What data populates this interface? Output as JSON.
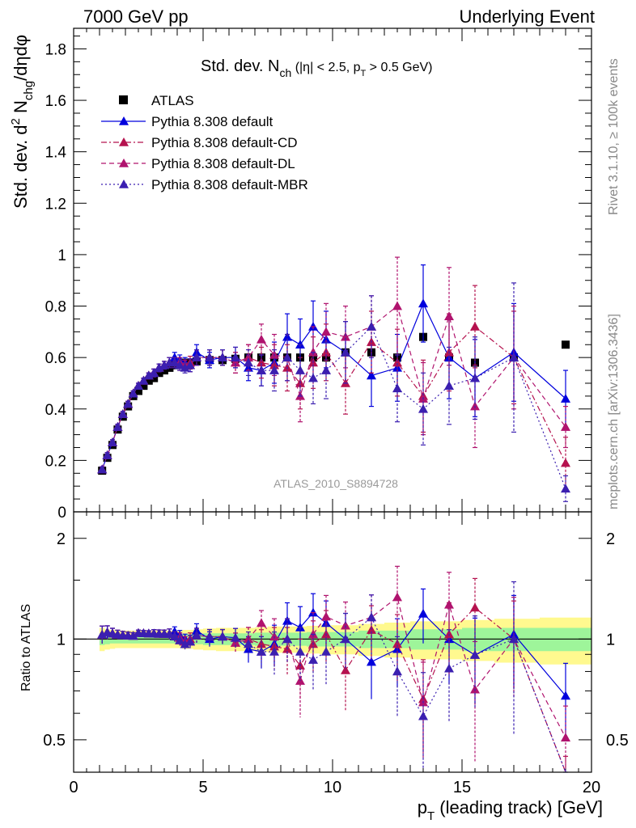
{
  "header": {
    "left": "7000 GeV pp",
    "right": "Underlying Event"
  },
  "side": {
    "rivet": "Rivet 3.1.10, ≥ 100k events",
    "mcplots": "mcplots.cern.ch [arXiv:1306.3436]"
  },
  "chart_data": {
    "type": "scatter",
    "title": {
      "main": "Std. dev. N",
      "main_sub": "ch",
      "cut_a": " (|η| < 2.5, p",
      "cut_sub": "T",
      "cut_b": " > 0.5 GeV)"
    },
    "watermark": "ATLAS_2010_S8894728",
    "ylabel": {
      "a": "Std. dev. d",
      "sup": "2",
      "b": " N",
      "sub": "chg",
      "c": "/dηdφ"
    },
    "ratio_ylabel": "Ratio to ATLAS",
    "xlabel": {
      "a": "p",
      "sub": "T",
      "b": " (leading track) [GeV]"
    },
    "xlim": [
      0,
      20
    ],
    "ylim": [
      0,
      1.88
    ],
    "ratio_ylim": [
      0.4,
      2.4
    ],
    "ratio_scale": "log",
    "x_ticks": [
      "0",
      "5",
      "10",
      "15",
      "20"
    ],
    "y_ticks": [
      "0",
      "0.2",
      "0.4",
      "0.6",
      "0.8",
      "1",
      "1.2",
      "1.4",
      "1.6",
      "1.8"
    ],
    "ratio_ticks": [
      "0.5",
      "1",
      "2"
    ],
    "colors": {
      "atlas": "#000000",
      "default": "#0000dd",
      "cd": "#b5124e",
      "dl": "#b0136e",
      "mbr": "#3b1fb0",
      "band_inner": "#9ef59a",
      "band_outer": "#fff98f"
    },
    "legend": [
      {
        "label": "ATLAS",
        "key": "atlas"
      },
      {
        "label": "Pythia 8.308 default",
        "key": "default"
      },
      {
        "label": "Pythia 8.308 default-CD",
        "key": "cd"
      },
      {
        "label": "Pythia 8.308 default-DL",
        "key": "dl"
      },
      {
        "label": "Pythia 8.308 default-MBR",
        "key": "mbr"
      }
    ],
    "x": [
      1.1,
      1.3,
      1.5,
      1.7,
      1.9,
      2.1,
      2.3,
      2.5,
      2.7,
      2.9,
      3.1,
      3.3,
      3.5,
      3.7,
      3.9,
      4.1,
      4.3,
      4.5,
      4.75,
      5.25,
      5.75,
      6.25,
      6.75,
      7.25,
      7.75,
      8.25,
      8.75,
      9.25,
      9.75,
      10.5,
      11.5,
      12.5,
      13.5,
      14.5,
      15.5,
      17.0,
      19.0
    ],
    "atlas": {
      "y": [
        0.16,
        0.21,
        0.26,
        0.32,
        0.37,
        0.41,
        0.45,
        0.47,
        0.49,
        0.51,
        0.52,
        0.54,
        0.55,
        0.56,
        0.57,
        0.575,
        0.58,
        0.58,
        0.585,
        0.59,
        0.59,
        0.595,
        0.6,
        0.6,
        0.6,
        0.6,
        0.6,
        0.6,
        0.6,
        0.62,
        0.62,
        0.6,
        0.68,
        0.6,
        0.58,
        0.6,
        0.65
      ],
      "band_inner": [
        0.04,
        0.035,
        0.03,
        0.03,
        0.03,
        0.03,
        0.03,
        0.03,
        0.03,
        0.03,
        0.03,
        0.03,
        0.03,
        0.03,
        0.03,
        0.03,
        0.035,
        0.035,
        0.035,
        0.04,
        0.04,
        0.04,
        0.04,
        0.045,
        0.045,
        0.045,
        0.045,
        0.05,
        0.05,
        0.05,
        0.06,
        0.06,
        0.07,
        0.07,
        0.08,
        0.08,
        0.08
      ],
      "band_outer": [
        0.08,
        0.07,
        0.065,
        0.06,
        0.06,
        0.06,
        0.06,
        0.06,
        0.06,
        0.06,
        0.06,
        0.06,
        0.06,
        0.06,
        0.06,
        0.06,
        0.065,
        0.065,
        0.07,
        0.075,
        0.08,
        0.08,
        0.08,
        0.085,
        0.09,
        0.09,
        0.09,
        0.095,
        0.1,
        0.1,
        0.11,
        0.12,
        0.13,
        0.13,
        0.14,
        0.15,
        0.16
      ]
    },
    "series": [
      {
        "key": "default",
        "name": "Pythia 8.308 default",
        "dash": "",
        "y": [
          0.165,
          0.22,
          0.27,
          0.33,
          0.38,
          0.42,
          0.46,
          0.49,
          0.51,
          0.53,
          0.54,
          0.56,
          0.57,
          0.58,
          0.6,
          0.59,
          0.58,
          0.57,
          0.62,
          0.59,
          0.6,
          0.6,
          0.56,
          0.55,
          0.58,
          0.68,
          0.65,
          0.72,
          0.67,
          0.62,
          0.53,
          0.56,
          0.81,
          0.6,
          0.52,
          0.62,
          0.44
        ],
        "err": [
          0.01,
          0.01,
          0.01,
          0.01,
          0.01,
          0.01,
          0.01,
          0.01,
          0.01,
          0.01,
          0.015,
          0.015,
          0.015,
          0.02,
          0.02,
          0.02,
          0.02,
          0.025,
          0.03,
          0.03,
          0.03,
          0.04,
          0.05,
          0.06,
          0.08,
          0.09,
          0.1,
          0.1,
          0.11,
          0.12,
          0.12,
          0.13,
          0.15,
          0.16,
          0.15,
          0.19,
          0.11
        ]
      },
      {
        "key": "cd",
        "name": "Pythia 8.308 default-CD",
        "dash": "7,3,2,3",
        "y": [
          0.165,
          0.22,
          0.27,
          0.33,
          0.38,
          0.42,
          0.46,
          0.49,
          0.51,
          0.53,
          0.54,
          0.56,
          0.57,
          0.58,
          0.58,
          0.57,
          0.57,
          0.58,
          0.6,
          0.6,
          0.6,
          0.58,
          0.6,
          0.58,
          0.57,
          0.56,
          0.5,
          0.58,
          0.62,
          0.5,
          0.66,
          0.58,
          0.45,
          0.62,
          0.72,
          0.6,
          0.19
        ],
        "err": [
          0.01,
          0.01,
          0.01,
          0.01,
          0.01,
          0.01,
          0.01,
          0.01,
          0.01,
          0.01,
          0.015,
          0.015,
          0.015,
          0.02,
          0.02,
          0.02,
          0.02,
          0.025,
          0.03,
          0.03,
          0.03,
          0.04,
          0.05,
          0.06,
          0.08,
          0.09,
          0.1,
          0.1,
          0.11,
          0.12,
          0.12,
          0.13,
          0.14,
          0.15,
          0.16,
          0.18,
          0.1
        ]
      },
      {
        "key": "dl",
        "name": "Pythia 8.308 default-DL",
        "dash": "6,4",
        "y": [
          0.165,
          0.22,
          0.27,
          0.33,
          0.38,
          0.42,
          0.46,
          0.49,
          0.51,
          0.53,
          0.54,
          0.56,
          0.57,
          0.58,
          0.58,
          0.58,
          0.57,
          0.57,
          0.6,
          0.6,
          0.6,
          0.58,
          0.6,
          0.67,
          0.61,
          0.6,
          0.45,
          0.62,
          0.7,
          0.68,
          0.72,
          0.8,
          0.44,
          0.76,
          0.41,
          0.6,
          0.33
        ],
        "err": [
          0.01,
          0.01,
          0.01,
          0.01,
          0.01,
          0.01,
          0.01,
          0.01,
          0.01,
          0.01,
          0.015,
          0.015,
          0.015,
          0.02,
          0.02,
          0.02,
          0.02,
          0.025,
          0.03,
          0.03,
          0.03,
          0.04,
          0.05,
          0.06,
          0.08,
          0.09,
          0.1,
          0.1,
          0.11,
          0.12,
          0.12,
          0.19,
          0.14,
          0.19,
          0.16,
          0.2,
          0.08
        ]
      },
      {
        "key": "mbr",
        "name": "Pythia 8.308 default-MBR",
        "dash": "2,3",
        "y": [
          0.165,
          0.22,
          0.27,
          0.33,
          0.38,
          0.42,
          0.46,
          0.49,
          0.51,
          0.53,
          0.54,
          0.56,
          0.57,
          0.58,
          0.58,
          0.57,
          0.56,
          0.57,
          0.6,
          0.6,
          0.6,
          0.6,
          0.58,
          0.55,
          0.55,
          0.6,
          0.55,
          0.52,
          0.55,
          0.62,
          0.72,
          0.48,
          0.4,
          0.49,
          0.52,
          0.6,
          0.09
        ],
        "err": [
          0.01,
          0.01,
          0.01,
          0.01,
          0.01,
          0.01,
          0.01,
          0.01,
          0.01,
          0.01,
          0.015,
          0.015,
          0.015,
          0.02,
          0.02,
          0.02,
          0.02,
          0.025,
          0.03,
          0.03,
          0.03,
          0.04,
          0.05,
          0.06,
          0.08,
          0.09,
          0.1,
          0.1,
          0.11,
          0.12,
          0.12,
          0.13,
          0.14,
          0.15,
          0.16,
          0.29,
          0.05
        ]
      }
    ]
  }
}
